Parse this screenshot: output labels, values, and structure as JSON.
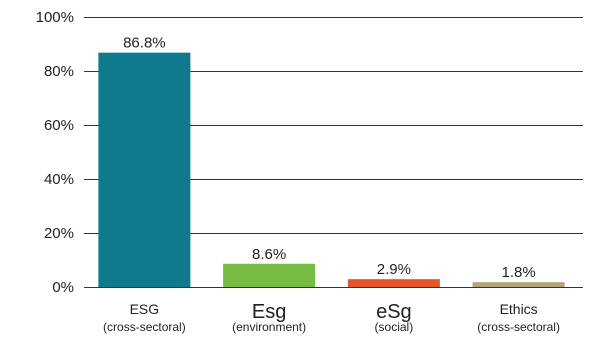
{
  "chart_data": {
    "type": "bar",
    "categories": [
      {
        "label": "ESG",
        "sublabel": "(cross-sectoral)",
        "color": "#0E7A8C"
      },
      {
        "label": "Esg",
        "sublabel": "(environment)",
        "color": "#76BC43"
      },
      {
        "label": "eSg",
        "sublabel": "(social)",
        "color": "#E5552A"
      },
      {
        "label": "Ethics",
        "sublabel": "(cross-sectoral)",
        "color": "#B5A47A"
      }
    ],
    "values": [
      86.8,
      8.6,
      2.9,
      1.8
    ],
    "data_labels": [
      "86.8%",
      "8.6%",
      "2.9%",
      "1.8%"
    ],
    "ylim": [
      0,
      100
    ],
    "yticks": [
      0,
      20,
      40,
      60,
      80,
      100
    ],
    "ytick_labels": [
      "0%",
      "20%",
      "40%",
      "60%",
      "80%",
      "100%"
    ],
    "grid": true,
    "title": "",
    "xlabel": "",
    "ylabel": ""
  }
}
